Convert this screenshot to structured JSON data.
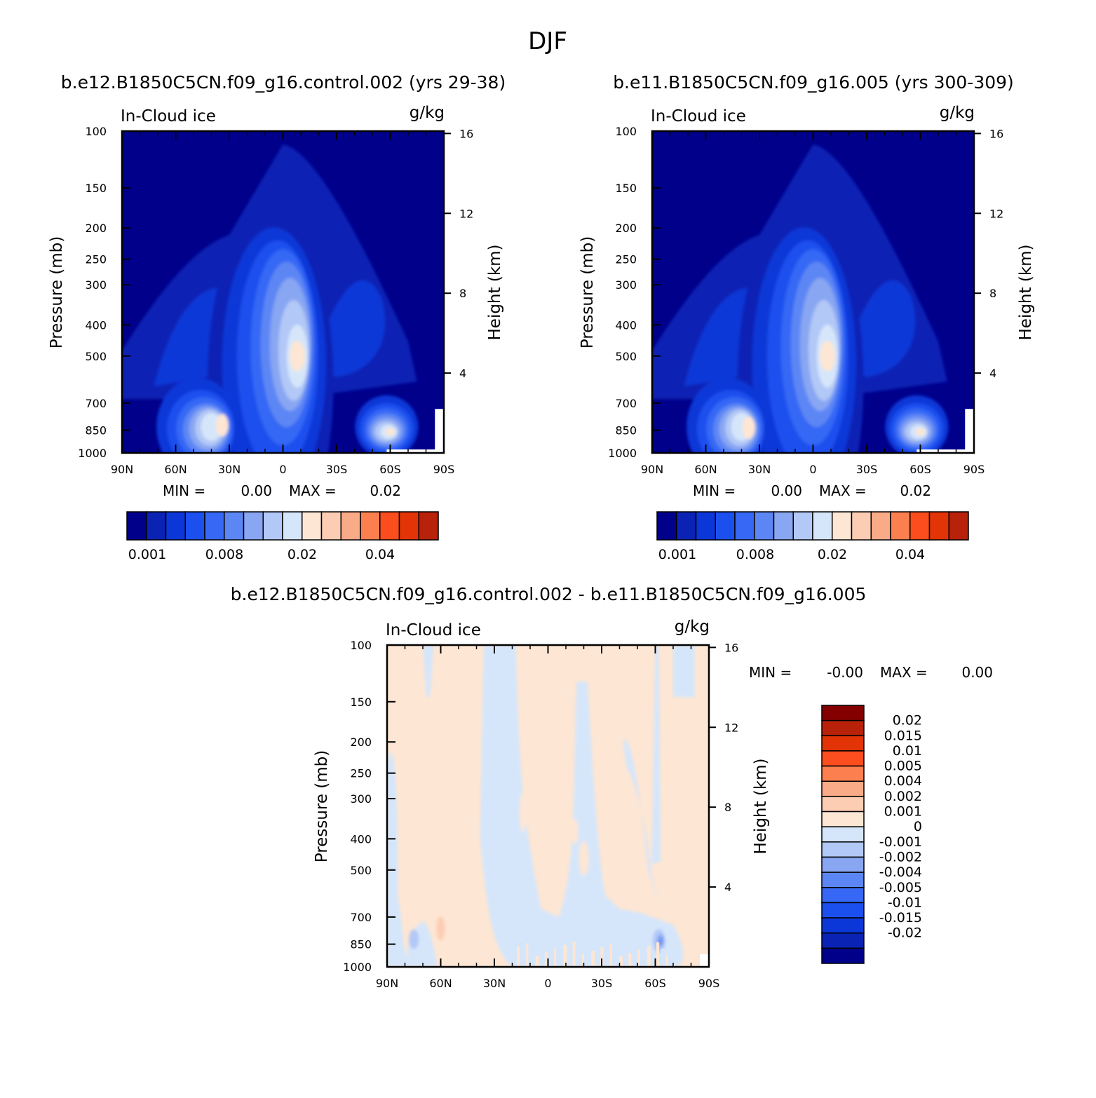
{
  "figure_title": "DJF",
  "colors": {
    "seq": [
      "#00008b",
      "#0a23b4",
      "#0c37d8",
      "#1b4fee",
      "#3668f5",
      "#5d86f5",
      "#88a6f2",
      "#b2c8f6",
      "#d5e6fb",
      "#fde6d3",
      "#fdcdb3",
      "#f9aa86",
      "#fc7f4f",
      "#fb4d1d",
      "#e23406",
      "#b9220a",
      "#840000"
    ],
    "diff": [
      "#840000",
      "#b9220a",
      "#e23406",
      "#fb4d1d",
      "#fc7f4f",
      "#f9aa86",
      "#fdcdb3",
      "#fde6d3",
      "#d5e6fb",
      "#b2c8f6",
      "#88a6f2",
      "#5d86f5",
      "#3668f5",
      "#1b4fee",
      "#0c37d8",
      "#0a23b4",
      "#00008b"
    ]
  },
  "chart_data": [
    {
      "type": "heatmap",
      "title": "b.e12.B1850C5CN.f09_g16.control.002 (yrs 29-38)",
      "left_label": "In-Cloud ice",
      "right_label": "g/kg",
      "xlabel": "",
      "ylabel": "Pressure (mb)",
      "y2label": "Height (km)",
      "x_ticks": [
        "90N",
        "60N",
        "30N",
        "0",
        "30S",
        "60S",
        "90S"
      ],
      "y_ticks": [
        100,
        150,
        200,
        250,
        300,
        400,
        500,
        700,
        850,
        1000
      ],
      "y2_ticks": [
        16,
        12,
        8,
        4
      ],
      "ylim": [
        1000,
        100
      ],
      "min_label": "MIN =",
      "min_value": "0.00",
      "max_label": "MAX =",
      "max_value": "0.02",
      "colorbar_labels": [
        "0.001",
        "0.008",
        "0.02",
        "0.04"
      ],
      "features": [
        {
          "lat": -8,
          "p": 500,
          "peak": 0.02,
          "note": "tropical upper maximum"
        },
        {
          "lat": 40,
          "p": 800,
          "peak": 0.012
        },
        {
          "lat": -60,
          "p": 850,
          "peak": 0.013
        },
        {
          "lat": 35,
          "p": 400,
          "peak": 0.005
        }
      ]
    },
    {
      "type": "heatmap",
      "title": "b.e11.B1850C5CN.f09_g16.005 (yrs 300-309)",
      "left_label": "In-Cloud ice",
      "right_label": "g/kg",
      "xlabel": "",
      "ylabel": "Pressure (mb)",
      "y2label": "Height (km)",
      "x_ticks": [
        "90N",
        "60N",
        "30N",
        "0",
        "30S",
        "60S",
        "90S"
      ],
      "y_ticks": [
        100,
        150,
        200,
        250,
        300,
        400,
        500,
        700,
        850,
        1000
      ],
      "y2_ticks": [
        16,
        12,
        8,
        4
      ],
      "ylim": [
        1000,
        100
      ],
      "min_label": "MIN =",
      "min_value": "0.00",
      "max_label": "MAX =",
      "max_value": "0.02",
      "colorbar_labels": [
        "0.001",
        "0.008",
        "0.02",
        "0.04"
      ],
      "features": [
        {
          "lat": -8,
          "p": 500,
          "peak": 0.02
        },
        {
          "lat": 40,
          "p": 800,
          "peak": 0.012
        },
        {
          "lat": -60,
          "p": 850,
          "peak": 0.013
        },
        {
          "lat": 35,
          "p": 400,
          "peak": 0.005
        }
      ]
    },
    {
      "type": "heatmap",
      "title": "b.e12.B1850C5CN.f09_g16.control.002 - b.e11.B1850C5CN.f09_g16.005",
      "left_label": "In-Cloud ice",
      "right_label": "g/kg",
      "xlabel": "",
      "ylabel": "Pressure (mb)",
      "y2label": "Height (km)",
      "x_ticks": [
        "90N",
        "60N",
        "30N",
        "0",
        "30S",
        "60S",
        "90S"
      ],
      "y_ticks": [
        100,
        150,
        200,
        250,
        300,
        400,
        500,
        700,
        850,
        1000
      ],
      "y2_ticks": [
        16,
        12,
        8,
        4
      ],
      "ylim": [
        1000,
        100
      ],
      "min_label": "MIN =",
      "min_value": "-0.00",
      "max_label": "MAX =",
      "max_value": "0.00",
      "colorbar_labels": [
        "0.02",
        "0.015",
        "0.01",
        "0.005",
        "0.004",
        "0.002",
        "0.001",
        "0",
        "-0.001",
        "-0.002",
        "-0.004",
        "-0.005",
        "-0.01",
        "-0.015",
        "-0.02"
      ],
      "features": [
        {
          "lat": 60,
          "p": 760,
          "value": 0.001
        },
        {
          "lat": 75,
          "p": 820,
          "value": -0.002
        },
        {
          "lat": -62,
          "p": 820,
          "value": -0.004
        },
        {
          "lat": -10,
          "p": 400,
          "value": 0.001
        }
      ]
    }
  ]
}
